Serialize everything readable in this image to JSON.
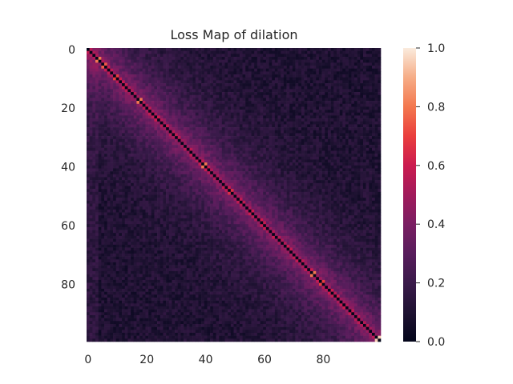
{
  "chart_data": {
    "type": "heatmap",
    "title": "Loss Map of dilation",
    "xlabel": "",
    "ylabel": "",
    "rows": 100,
    "cols": 100,
    "x_ticks": [
      {
        "value": 0,
        "label": "0"
      },
      {
        "value": 20,
        "label": "20"
      },
      {
        "value": 40,
        "label": "40"
      },
      {
        "value": 60,
        "label": "60"
      },
      {
        "value": 80,
        "label": "80"
      }
    ],
    "y_ticks": [
      {
        "value": 0,
        "label": "0"
      },
      {
        "value": 20,
        "label": "20"
      },
      {
        "value": 40,
        "label": "40"
      },
      {
        "value": 60,
        "label": "60"
      },
      {
        "value": 80,
        "label": "80"
      }
    ],
    "colorbar": {
      "range": [
        0.0,
        1.0
      ],
      "colormap": "rocket",
      "ticks": [
        {
          "value": 0.0,
          "label": "0.0"
        },
        {
          "value": 0.2,
          "label": "0.2"
        },
        {
          "value": 0.4,
          "label": "0.4"
        },
        {
          "value": 0.6,
          "label": "0.6"
        },
        {
          "value": 0.8,
          "label": "0.8"
        },
        {
          "value": 1.0,
          "label": "1.0"
        }
      ]
    },
    "pattern": {
      "diagonal_value": 0.0,
      "near_diagonal_peak": 0.55,
      "bright_spots": [
        {
          "index": 3,
          "value": 0.8
        },
        {
          "index": 5,
          "value": 0.75
        },
        {
          "index": 9,
          "value": 0.7
        },
        {
          "index": 17,
          "value": 0.8
        },
        {
          "index": 23,
          "value": 0.6
        },
        {
          "index": 28,
          "value": 0.55
        },
        {
          "index": 39,
          "value": 0.8
        },
        {
          "index": 48,
          "value": 0.65
        },
        {
          "index": 55,
          "value": 0.6
        },
        {
          "index": 76,
          "value": 0.8
        },
        {
          "index": 79,
          "value": 0.7
        },
        {
          "index": 82,
          "value": 0.6
        },
        {
          "index": 98,
          "value": 0.95
        }
      ],
      "background_mean": 0.1,
      "band_width": 12
    }
  }
}
